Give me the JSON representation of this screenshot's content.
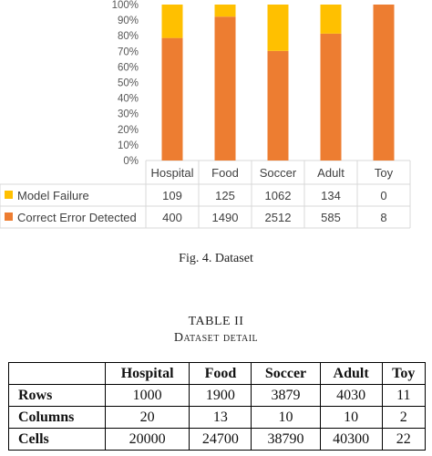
{
  "chart_data": {
    "type": "bar",
    "stacked": true,
    "normalized": true,
    "categories": [
      "Hospital",
      "Food",
      "Soccer",
      "Adult",
      "Toy"
    ],
    "y_ticks": [
      "0%",
      "10%",
      "20%",
      "30%",
      "40%",
      "50%",
      "60%",
      "70%",
      "80%",
      "90%",
      "100%"
    ],
    "ylim": [
      0,
      100
    ],
    "grid": false,
    "series": [
      {
        "name": "Model Failure",
        "color": "#ffc000",
        "values": [
          109,
          125,
          1062,
          134,
          0
        ]
      },
      {
        "name": "Correct Error Detected",
        "color": "#ed7d31",
        "values": [
          400,
          1490,
          2512,
          585,
          8
        ]
      }
    ],
    "data_table": true
  },
  "figure": {
    "caption": "Fig. 4.   Dataset"
  },
  "table": {
    "title": "TABLE II",
    "subtitle": "Dataset detail",
    "headers": [
      "",
      "Hospital",
      "Food",
      "Soccer",
      "Adult",
      "Toy"
    ],
    "rows": [
      [
        "Rows",
        "1000",
        "1900",
        "3879",
        "4030",
        "11"
      ],
      [
        "Columns",
        "20",
        "13",
        "10",
        "10",
        "2"
      ],
      [
        "Cells",
        "20000",
        "24700",
        "38790",
        "40300",
        "22"
      ]
    ]
  }
}
